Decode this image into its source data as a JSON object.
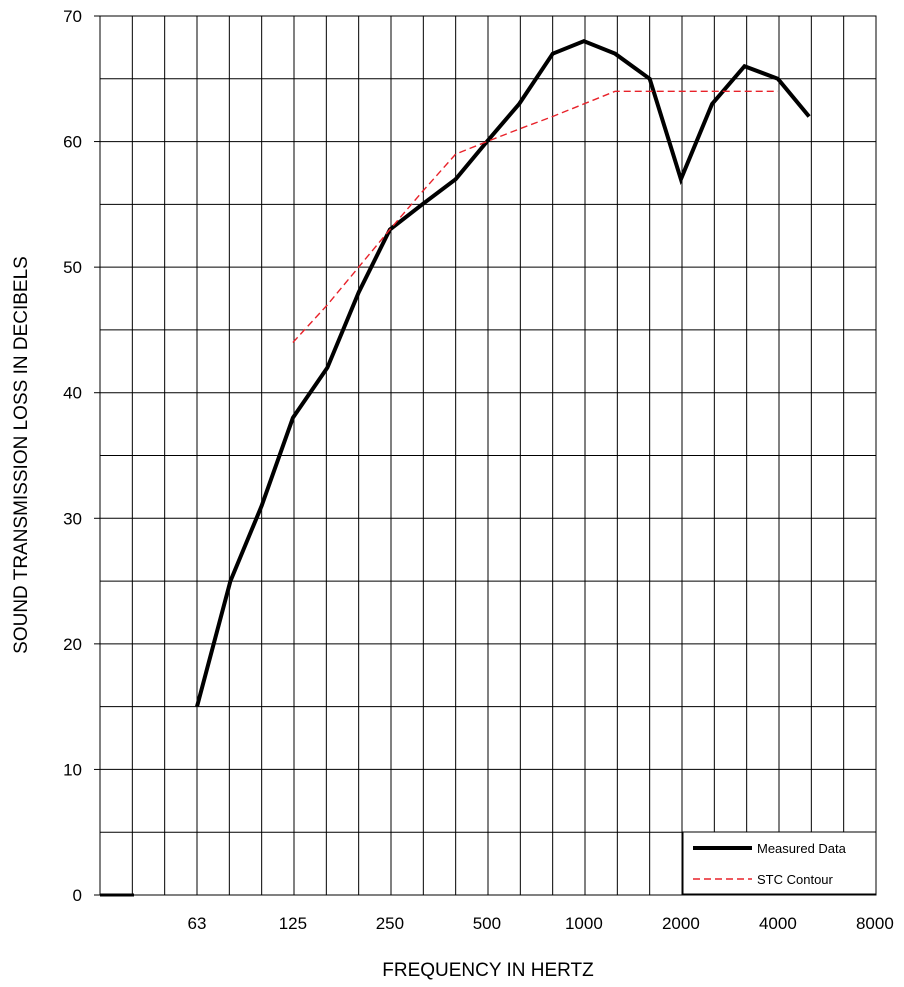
{
  "chart_data": {
    "type": "line",
    "title": "",
    "xlabel": "FREQUENCY IN HERTZ",
    "ylabel": "SOUND TRANSMISSION LOSS IN DECIBELS",
    "x_scale": "log (third-octave bands)",
    "xlim": [
      20,
      10000
    ],
    "ylim": [
      0,
      70
    ],
    "yticks": [
      0,
      10,
      20,
      30,
      40,
      50,
      60,
      70
    ],
    "xtick_labels": [
      "63",
      "125",
      "250",
      "500",
      "1000",
      "2000",
      "4000",
      "8000"
    ],
    "grid": true,
    "legend_position": "bottom-right",
    "series": [
      {
        "name": "Measured Data",
        "color": "#000000",
        "style": "solid",
        "x": [
          63,
          80,
          100,
          125,
          160,
          200,
          250,
          315,
          400,
          500,
          630,
          800,
          1000,
          1250,
          1600,
          2000,
          2500,
          3150,
          4000,
          5000
        ],
        "y": [
          15,
          25,
          31,
          38,
          42,
          48,
          53,
          55,
          57,
          60,
          63,
          67,
          68,
          67,
          65,
          57,
          63,
          66,
          65,
          62
        ]
      },
      {
        "name": "STC Contour",
        "color": "#e8222a",
        "style": "dashed",
        "x": [
          125,
          160,
          200,
          250,
          315,
          400,
          500,
          630,
          800,
          1000,
          1250,
          1600,
          2000,
          2500,
          3150,
          4000
        ],
        "y": [
          44,
          47,
          50,
          53,
          56,
          59,
          60,
          61,
          62,
          63,
          64,
          64,
          64,
          64,
          64,
          64
        ]
      }
    ]
  }
}
